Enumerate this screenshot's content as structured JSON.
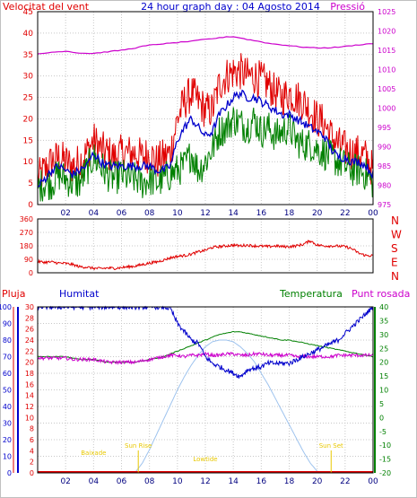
{
  "colors": {
    "wind": "#e00000",
    "avg_wind": "#0000cc",
    "gust": "#008000",
    "pressure": "#cc00cc",
    "direction": "#e00000",
    "humidity": "#0000cc",
    "temperature": "#008000",
    "dewpoint": "#cc00cc",
    "rain": "#e00000",
    "solar": "#9ec3ee",
    "annotation": "#e8c800"
  },
  "chart_data": [
    {
      "type": "line",
      "title": "24 hour graph day : 04 Agosto 2014",
      "left_label": "Velocitat del vent",
      "right_label": "Pressió",
      "x_tick_labels": [
        "02",
        "04",
        "06",
        "08",
        "10",
        "12",
        "14",
        "16",
        "18",
        "20",
        "22",
        "00"
      ],
      "y_left_ticks": [
        "0",
        "5",
        "10",
        "15",
        "20",
        "25",
        "30",
        "35",
        "40",
        "45"
      ],
      "y_right_ticks": [
        "975",
        "980",
        "985",
        "990",
        "995",
        "1000",
        "1005",
        "1010",
        "1015",
        "1020",
        "1025"
      ],
      "ylim_left": [
        0,
        45
      ],
      "ylim_right": [
        975,
        1025
      ],
      "x": [
        0,
        0.5,
        1,
        1.5,
        2,
        2.5,
        3,
        3.5,
        4,
        4.5,
        5,
        5.5,
        6,
        6.5,
        7,
        7.5,
        8,
        8.5,
        9,
        9.5,
        10,
        10.5,
        11,
        11.5,
        12,
        12.5,
        13,
        13.5,
        14,
        14.5,
        15,
        15.5,
        16,
        16.5,
        17,
        17.5,
        18,
        18.5,
        19,
        19.5,
        20,
        20.5,
        21,
        21.5,
        22,
        22.5,
        23,
        23.5,
        24
      ],
      "series": [
        {
          "key": "wind_max",
          "axis": "left",
          "values": [
            6,
            8,
            10,
            11,
            10,
            9,
            10,
            12,
            15,
            13,
            12,
            11,
            12,
            12,
            12,
            11,
            12,
            10,
            11,
            12,
            20,
            24,
            26,
            24,
            22,
            22,
            28,
            30,
            31,
            31,
            30,
            30,
            29,
            28,
            26,
            25,
            26,
            25,
            24,
            22,
            20,
            19,
            16,
            14,
            13,
            12,
            12,
            11,
            8
          ]
        },
        {
          "key": "wind_avg",
          "axis": "left",
          "values": [
            4,
            6,
            8,
            9,
            8,
            7,
            8,
            9,
            12,
            10,
            9,
            9,
            9,
            9,
            9,
            9,
            9,
            8,
            8,
            9,
            15,
            18,
            20,
            18,
            16,
            17,
            21,
            23,
            25,
            26,
            25,
            25,
            24,
            23,
            22,
            21,
            21,
            20,
            19,
            18,
            17,
            16,
            13,
            11,
            11,
            10,
            10,
            9,
            7
          ]
        },
        {
          "key": "gust",
          "axis": "left",
          "values": [
            4,
            5,
            5,
            7,
            6,
            5,
            5,
            8,
            11,
            9,
            7,
            6,
            7,
            6,
            6,
            5,
            6,
            5,
            6,
            7,
            8,
            9,
            12,
            8,
            10,
            13,
            17,
            18,
            20,
            19,
            18,
            20,
            17,
            18,
            16,
            17,
            18,
            15,
            14,
            14,
            13,
            12,
            11,
            10,
            9,
            8,
            8,
            7,
            5
          ]
        },
        {
          "key": "pressure",
          "axis": "right",
          "values": [
            1014,
            1014.2,
            1014.5,
            1014.6,
            1014.8,
            1014.5,
            1014.3,
            1014.2,
            1014.2,
            1014.4,
            1014.6,
            1014.8,
            1015,
            1015.3,
            1015.6,
            1016,
            1016.3,
            1016.5,
            1016.7,
            1016.8,
            1017,
            1017.2,
            1017.3,
            1017.6,
            1017.8,
            1018,
            1018.2,
            1018.5,
            1018.5,
            1018.2,
            1017.8,
            1017.5,
            1017.2,
            1016.8,
            1016.6,
            1016.4,
            1016.2,
            1016,
            1015.8,
            1015.7,
            1015.6,
            1015.6,
            1015.7,
            1015.8,
            1016,
            1016.2,
            1016.4,
            1016.6,
            1016.7
          ]
        }
      ]
    },
    {
      "type": "line",
      "right_labels": [
        "N",
        "W",
        "S",
        "E",
        "N"
      ],
      "y_left_ticks": [
        "0",
        "90",
        "180",
        "270",
        "360"
      ],
      "ylim": [
        0,
        360
      ],
      "x_tick_labels": [
        "02",
        "04",
        "06",
        "08",
        "10",
        "12",
        "14",
        "16",
        "18",
        "20",
        "22",
        "00"
      ],
      "x": [
        0,
        0.5,
        1,
        1.5,
        2,
        2.5,
        3,
        3.5,
        4,
        4.5,
        5,
        5.5,
        6,
        6.5,
        7,
        7.5,
        8,
        8.5,
        9,
        9.5,
        10,
        10.5,
        11,
        11.5,
        12,
        12.5,
        13,
        13.5,
        14,
        14.5,
        15,
        15.5,
        16,
        16.5,
        17,
        17.5,
        18,
        18.5,
        19,
        19.5,
        20,
        20.5,
        21,
        21.5,
        22,
        22.5,
        23,
        23.5,
        24
      ],
      "series": [
        {
          "key": "direction",
          "values": [
            75,
            70,
            72,
            65,
            62,
            55,
            40,
            38,
            30,
            28,
            32,
            30,
            35,
            40,
            45,
            55,
            65,
            72,
            85,
            100,
            110,
            115,
            125,
            140,
            150,
            170,
            175,
            180,
            185,
            180,
            185,
            180,
            178,
            175,
            180,
            175,
            175,
            180,
            190,
            215,
            185,
            180,
            180,
            178,
            175,
            160,
            130,
            115,
            115
          ]
        }
      ]
    },
    {
      "type": "line",
      "title_labels": {
        "rain": "Pluja",
        "humidity": "Humitat",
        "temperature": "Temperatura",
        "dewpoint": "Punt rosada"
      },
      "y_rain_ticks": [
        "0",
        "2",
        "4",
        "6",
        "8",
        "10",
        "12",
        "14",
        "16",
        "18",
        "20",
        "22",
        "24",
        "26",
        "28",
        "30"
      ],
      "y_humidity_ticks": [
        "0",
        "10",
        "20",
        "30",
        "40",
        "50",
        "60",
        "70",
        "80",
        "90",
        "100"
      ],
      "y_temp_ticks": [
        "-20",
        "-15",
        "-10",
        "-5",
        "0",
        "5",
        "10",
        "15",
        "20",
        "25",
        "30",
        "35",
        "40"
      ],
      "ylim_humidity": [
        0,
        100
      ],
      "ylim_temp": [
        -20,
        40
      ],
      "x_tick_labels": [
        "02",
        "04",
        "06",
        "08",
        "10",
        "12",
        "14",
        "16",
        "18",
        "20",
        "22",
        "00"
      ],
      "x": [
        0,
        0.5,
        1,
        1.5,
        2,
        2.5,
        3,
        3.5,
        4,
        4.5,
        5,
        5.5,
        6,
        6.5,
        7,
        7.5,
        8,
        8.5,
        9,
        9.5,
        10,
        10.5,
        11,
        11.5,
        12,
        12.5,
        13,
        13.5,
        14,
        14.5,
        15,
        15.5,
        16,
        16.5,
        17,
        17.5,
        18,
        18.5,
        19,
        19.5,
        20,
        20.5,
        21,
        21.5,
        22,
        22.5,
        23,
        23.5,
        24
      ],
      "series": [
        {
          "key": "humidity",
          "axis": "humidity",
          "values": [
            100,
            100,
            100,
            100,
            100,
            100,
            100,
            100,
            100,
            100,
            100,
            100,
            100,
            100,
            100,
            100,
            100,
            100,
            100,
            99,
            90,
            85,
            80,
            78,
            70,
            66,
            64,
            62,
            60,
            58,
            62,
            63,
            64,
            66,
            66,
            66,
            66,
            68,
            70,
            72,
            74,
            76,
            78,
            80,
            84,
            88,
            92,
            96,
            100
          ]
        },
        {
          "key": "temperature",
          "axis": "temp",
          "values": [
            22,
            22,
            22,
            22,
            22,
            21.5,
            21,
            21,
            21,
            20.5,
            20,
            20,
            20,
            20,
            20,
            20.5,
            21,
            21.5,
            22,
            23,
            24,
            25,
            26,
            27,
            28,
            29,
            30,
            30.5,
            31,
            31,
            30.5,
            30,
            29.5,
            29,
            28.5,
            28,
            28,
            27.5,
            27,
            26.5,
            26,
            25.5,
            25,
            24.5,
            24,
            23.5,
            23,
            22.5,
            22
          ]
        },
        {
          "key": "dewpoint",
          "axis": "temp",
          "values": [
            21.5,
            21.5,
            21.5,
            21.5,
            21.5,
            21,
            21,
            21,
            21,
            20.5,
            20,
            20,
            20,
            20,
            20,
            20.5,
            21,
            21.5,
            22,
            22.5,
            22.5,
            22,
            22.5,
            22.5,
            23,
            22.5,
            22.5,
            23,
            23,
            22.5,
            22.5,
            23,
            23,
            22.5,
            22.5,
            22.5,
            22.5,
            22,
            22,
            22,
            22,
            22,
            22,
            22.5,
            22.5,
            22.5,
            22.5,
            22.5,
            22.5
          ]
        },
        {
          "key": "solar",
          "axis": "humidity",
          "values": [
            0,
            0,
            0,
            0,
            0,
            0,
            0,
            0,
            0,
            0,
            0,
            0,
            0,
            0,
            0.5,
            6,
            14,
            23,
            32,
            41,
            50,
            58,
            65,
            71,
            76,
            79,
            80,
            80,
            79,
            76,
            72,
            67,
            60,
            53,
            45,
            37,
            29,
            21,
            13,
            6,
            1,
            0,
            0,
            0,
            0,
            0,
            0,
            0,
            0
          ]
        },
        {
          "key": "rain",
          "axis": "humidity",
          "values": [
            0,
            0,
            0,
            0,
            0,
            0,
            0,
            0,
            0,
            0,
            0,
            0,
            0,
            0,
            0,
            0,
            0,
            0,
            0,
            0,
            0,
            0,
            0,
            0,
            0,
            0,
            0,
            0,
            0,
            0,
            0,
            0,
            0,
            0,
            0,
            0,
            0,
            0,
            0,
            0,
            0,
            0,
            0,
            0,
            0,
            0,
            0,
            0,
            0
          ]
        }
      ],
      "annotations": {
        "baixada_label": "Baixade",
        "sun_rise_label": "Sun Rise",
        "lowtide_label": "Lowtide",
        "sun_set_label": "Sun Set",
        "sun_rise_x": 7.2,
        "sun_set_x": 21.0,
        "lowtide_x": 12.0,
        "baixada_x": 4.0
      }
    }
  ]
}
